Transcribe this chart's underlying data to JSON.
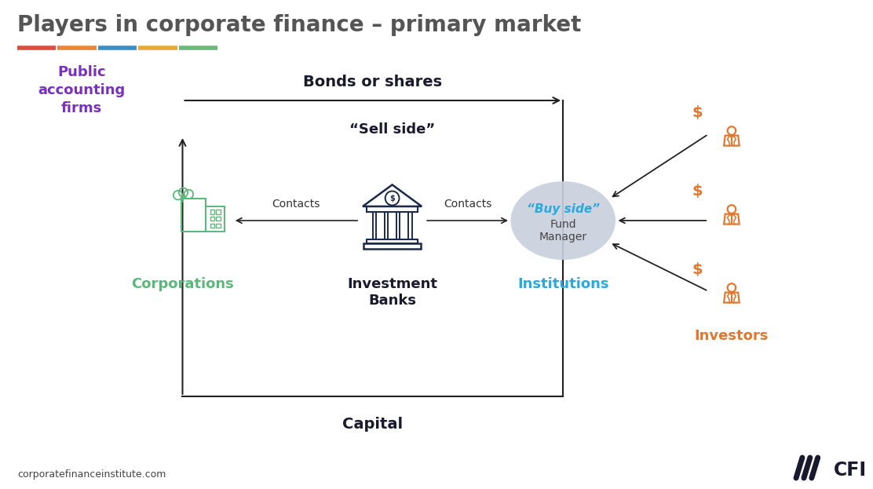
{
  "title": "Players in corporate finance – primary market",
  "title_color": "#555555",
  "title_fontsize": 20,
  "bg_color": "#ffffff",
  "underline_colors": [
    "#d94f3d",
    "#e8873a",
    "#3a8fc4",
    "#e8a83a",
    "#6ab87a"
  ],
  "public_accounting_text": "Public\naccounting\nfirms",
  "public_accounting_color": "#7b2fbe",
  "corporations_text": "Corporations",
  "corporations_color": "#5cb87a",
  "sell_side_text": "“Sell side”",
  "sell_side_color": "#1a1a2e",
  "investment_banks_text": "Investment\nBanks",
  "investment_banks_color": "#1a1a2e",
  "buy_side_text": "“Buy side”",
  "buy_side_subtext": "Fund\nManager",
  "buy_side_color": "#29a9e0",
  "buy_side_bg": "#c8d0dc",
  "institutions_text": "Institutions",
  "institutions_color": "#29a9e0",
  "investors_text": "Investors",
  "investors_color": "#e07830",
  "bonds_shares_text": "Bonds or shares",
  "capital_text": "Capital",
  "contacts_text": "Contacts",
  "arrow_color": "#222222",
  "box_line_color": "#222222",
  "website_text": "corporatefinanceinstitute.com",
  "cfi_text": "CFI",
  "cfi_color": "#1a1a2e",
  "bank_color": "#1a2a4a",
  "corp_color": "#5cb87a"
}
